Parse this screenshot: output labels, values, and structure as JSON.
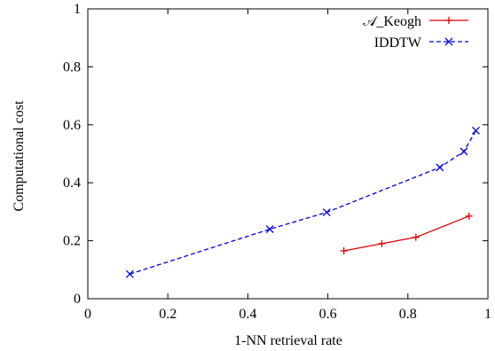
{
  "chart_data": {
    "type": "line",
    "title": "",
    "xlabel": "1-NN retrieval rate",
    "ylabel": "Computational cost",
    "xlim": [
      0,
      1
    ],
    "ylim": [
      0,
      1
    ],
    "x_ticks": [
      "0",
      "0.2",
      "0.4",
      "0.6",
      "0.8",
      "1"
    ],
    "y_ticks": [
      "0",
      "0.2",
      "0.4",
      "0.6",
      "0.8",
      "1"
    ],
    "grid": false,
    "legend_position": "top-right",
    "series": [
      {
        "name": "𝒜_Keogh",
        "color": "#e00000",
        "line_style": "solid",
        "marker": "plus",
        "points": [
          {
            "x": 0.64,
            "y": 0.165
          },
          {
            "x": 0.735,
            "y": 0.19
          },
          {
            "x": 0.82,
            "y": 0.212
          },
          {
            "x": 0.953,
            "y": 0.285
          }
        ]
      },
      {
        "name": "IDDTW",
        "color": "#0000e0",
        "line_style": "dashed",
        "marker": "cross",
        "points": [
          {
            "x": 0.105,
            "y": 0.085
          },
          {
            "x": 0.455,
            "y": 0.24
          },
          {
            "x": 0.597,
            "y": 0.298
          },
          {
            "x": 0.88,
            "y": 0.453
          },
          {
            "x": 0.94,
            "y": 0.508
          },
          {
            "x": 0.97,
            "y": 0.58
          }
        ]
      }
    ]
  }
}
